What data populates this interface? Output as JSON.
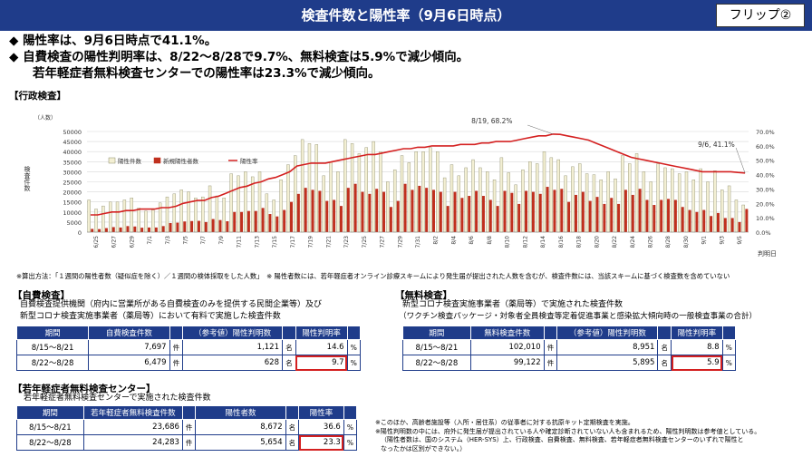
{
  "header": {
    "title": "検査件数と陽性率（9月6日時点）",
    "flip": "フリップ②"
  },
  "bullets": [
    "◆ 陽性率は、9月6日時点で41.1%。",
    "◆ 自費検査の陽性判明率は、8/22～8/28で9.7%、無料検査は5.9%で減少傾向。",
    "若年軽症者無料検査センターでの陽性率は23.3%で減少傾向。"
  ],
  "admin_label": "【行政検査】",
  "chart_data": {
    "type": "bar",
    "ylabel": "検査件数",
    "yunit": "（人数）",
    "xlabel": "判明日",
    "ylim": [
      0,
      50000
    ],
    "y2lim": [
      0,
      70
    ],
    "yticks": [
      "0",
      "5000",
      "10000",
      "15000",
      "20000",
      "25000",
      "30000",
      "35000",
      "40000",
      "45000",
      "50000"
    ],
    "y2ticks": [
      "0.0%",
      "10.0%",
      "20.0%",
      "30.0%",
      "40.0%",
      "50.0%",
      "60.0%",
      "70.0%"
    ],
    "x_tick_labels": [
      "6/25",
      "6/27",
      "6/29",
      "7/1",
      "7/3",
      "7/5",
      "7/7",
      "7/9",
      "7/11",
      "7/13",
      "7/15",
      "7/17",
      "7/19",
      "7/21",
      "7/23",
      "7/25",
      "7/27",
      "7/29",
      "7/31",
      "8/2",
      "8/4",
      "8/6",
      "8/8",
      "8/10",
      "8/12",
      "8/14",
      "8/16",
      "8/18",
      "8/20",
      "8/22",
      "8/24",
      "8/26",
      "8/28",
      "8/30",
      "9/1",
      "9/3",
      "9/5"
    ],
    "legend": [
      "陽性件数",
      "新規陽性者数",
      "陽性率"
    ],
    "series": [
      {
        "name": "陽性件数",
        "values": [
          16000,
          11500,
          13000,
          15000,
          15000,
          16000,
          17000,
          12000,
          10500,
          11000,
          14500,
          17500,
          19000,
          21000,
          20000,
          17000,
          17500,
          23000,
          18000,
          17000,
          29000,
          28000,
          30000,
          27500,
          30000,
          19000,
          16000,
          26000,
          33500,
          38000,
          46000,
          44000,
          43500,
          28000,
          35000,
          30000,
          46000,
          44000,
          39000,
          42000,
          45000,
          40000,
          25000,
          31000,
          38000,
          34500,
          40000,
          40000,
          42000,
          40000,
          27000,
          33500,
          28000,
          32000,
          36000,
          32000,
          30000,
          26000,
          37000,
          29500,
          23500,
          31000,
          35000,
          34000,
          40000,
          37000,
          36000,
          28000,
          32500,
          34000,
          29000,
          28500,
          26000,
          30000,
          26500,
          38000,
          34000,
          39000,
          30000,
          25000,
          34000,
          32000,
          31500,
          29000,
          30000,
          26000,
          31500,
          25000,
          30500,
          21000,
          23000,
          16000,
          13500
        ]
      },
      {
        "name": "新規陽性者数",
        "values": [
          1600,
          1500,
          2000,
          2500,
          2300,
          3000,
          2800,
          2200,
          2300,
          2300,
          3000,
          4500,
          4700,
          5300,
          5500,
          5600,
          5000,
          6500,
          6000,
          5400,
          10000,
          10000,
          10500,
          10500,
          12000,
          9000,
          7800,
          11000,
          15000,
          19000,
          22000,
          21000,
          20500,
          15500,
          16000,
          13000,
          22000,
          24000,
          20000,
          19000,
          21500,
          20000,
          12500,
          15500,
          24000,
          21000,
          23000,
          22000,
          21000,
          20000,
          13000,
          20000,
          17000,
          18000,
          20500,
          18000,
          16000,
          13000,
          20500,
          19500,
          14000,
          20500,
          20000,
          19000,
          22500,
          21000,
          21500,
          15000,
          18500,
          20000,
          15500,
          17500,
          14000,
          17000,
          14000,
          21000,
          18500,
          21500,
          16000,
          13500,
          16000,
          16500,
          16000,
          12500,
          11000,
          10000,
          11000,
          8000,
          9500,
          7000,
          7000,
          5000,
          11500
        ]
      },
      {
        "name": "陽性率",
        "values": [
          12,
          12,
          13,
          14,
          14,
          15,
          15,
          16,
          16,
          16,
          17,
          17,
          18,
          20,
          21,
          22,
          22,
          24,
          25,
          27,
          29,
          31,
          32,
          34,
          35,
          37,
          38,
          40,
          42,
          46,
          47,
          48,
          48,
          48,
          49,
          50,
          51,
          52,
          53,
          54,
          54,
          55,
          56,
          57,
          58,
          58,
          59,
          59,
          60,
          60,
          60,
          60,
          61,
          61,
          61,
          62,
          62,
          63,
          63,
          63,
          64,
          65,
          66,
          67,
          67,
          68.2,
          68,
          67,
          66,
          65,
          64,
          62,
          60,
          58,
          56,
          54,
          52,
          51,
          50,
          49,
          48,
          47,
          46,
          45,
          44,
          43,
          42,
          42,
          42,
          42,
          42,
          41.5,
          41.1
        ]
      }
    ],
    "annotations": [
      "8/19, 68.2%",
      "9/6, 41.1%"
    ]
  },
  "footnote": "※算出方法：「１週間の陽性者数（疑似症を除く）／１週間の検体採取をした人数」　※ 陽性者数には、若年軽症者オンライン診療スキームにより発生届が提出された人数を含むが、検査件数には、当該スキームに基づく検査数を含めていない",
  "jihi": {
    "label": "【自費検査】",
    "desc1": "自費検査提供機関（府内に営業所がある自費検査のみを提供する民間企業等）及び",
    "desc2": "新型コロナ検査実施事業者（薬局等）において有料で実施した検査件数",
    "headers": [
      "期間",
      "自費検査件数",
      "（参考値）陽性判明数",
      "陽性判明率"
    ],
    "rows": [
      {
        "period": "8/15～8/21",
        "count": "7,697",
        "cu": "件",
        "pos": "1,121",
        "pu": "名",
        "rate": "14.6",
        "ru": "%"
      },
      {
        "period": "8/22～8/28",
        "count": "6,479",
        "cu": "件",
        "pos": "628",
        "pu": "名",
        "rate": "9.7",
        "ru": "%"
      }
    ]
  },
  "muryo": {
    "label": "【無料検査】",
    "desc1": "新型コロナ検査実施事業者（薬局等）で実施された検査件数",
    "desc2": "（ワクチン検査パッケージ・対象者全員検査等定着促進事業と感染拡大傾向時の一般検査事業の合計）",
    "headers": [
      "期間",
      "無料検査件数",
      "（参考値）陽性判明数",
      "陽性判明率"
    ],
    "rows": [
      {
        "period": "8/15～8/21",
        "count": "102,010",
        "cu": "件",
        "pos": "8,951",
        "pu": "名",
        "rate": "8.8",
        "ru": "%"
      },
      {
        "period": "8/22～8/28",
        "count": "99,122",
        "cu": "件",
        "pos": "5,895",
        "pu": "名",
        "rate": "5.9",
        "ru": "%"
      }
    ]
  },
  "jakunen": {
    "label": "【若年軽症者無料検査センター】",
    "desc1": "若年軽症者無料検査センターで実施された検査件数",
    "headers": [
      "期間",
      "若年軽症者無料検査件数",
      "陽性者数",
      "陽性率"
    ],
    "rows": [
      {
        "period": "8/15～8/21",
        "count": "23,686",
        "cu": "件",
        "pos": "8,672",
        "pu": "名",
        "rate": "36.6",
        "ru": "%"
      },
      {
        "period": "8/22～8/28",
        "count": "24,283",
        "cu": "件",
        "pos": "5,654",
        "pu": "名",
        "rate": "23.3",
        "ru": "%"
      }
    ]
  },
  "notes": [
    "※このほか、高齢者施設等（入所・居住系）の従事者に対する抗原キット定期検査を実施。",
    "※陽性判明数の中には、府外に発生届が提出されている人や確定診断されていない人も含まれるため、陽性判明数は参考値としている。",
    "（陽性者数は、国のシステム（HER-SYS）上、行政検査、自費検査、無料検査、若年軽症者無料検査センターのいずれで陽性と",
    "なったかは区別ができない。）"
  ]
}
